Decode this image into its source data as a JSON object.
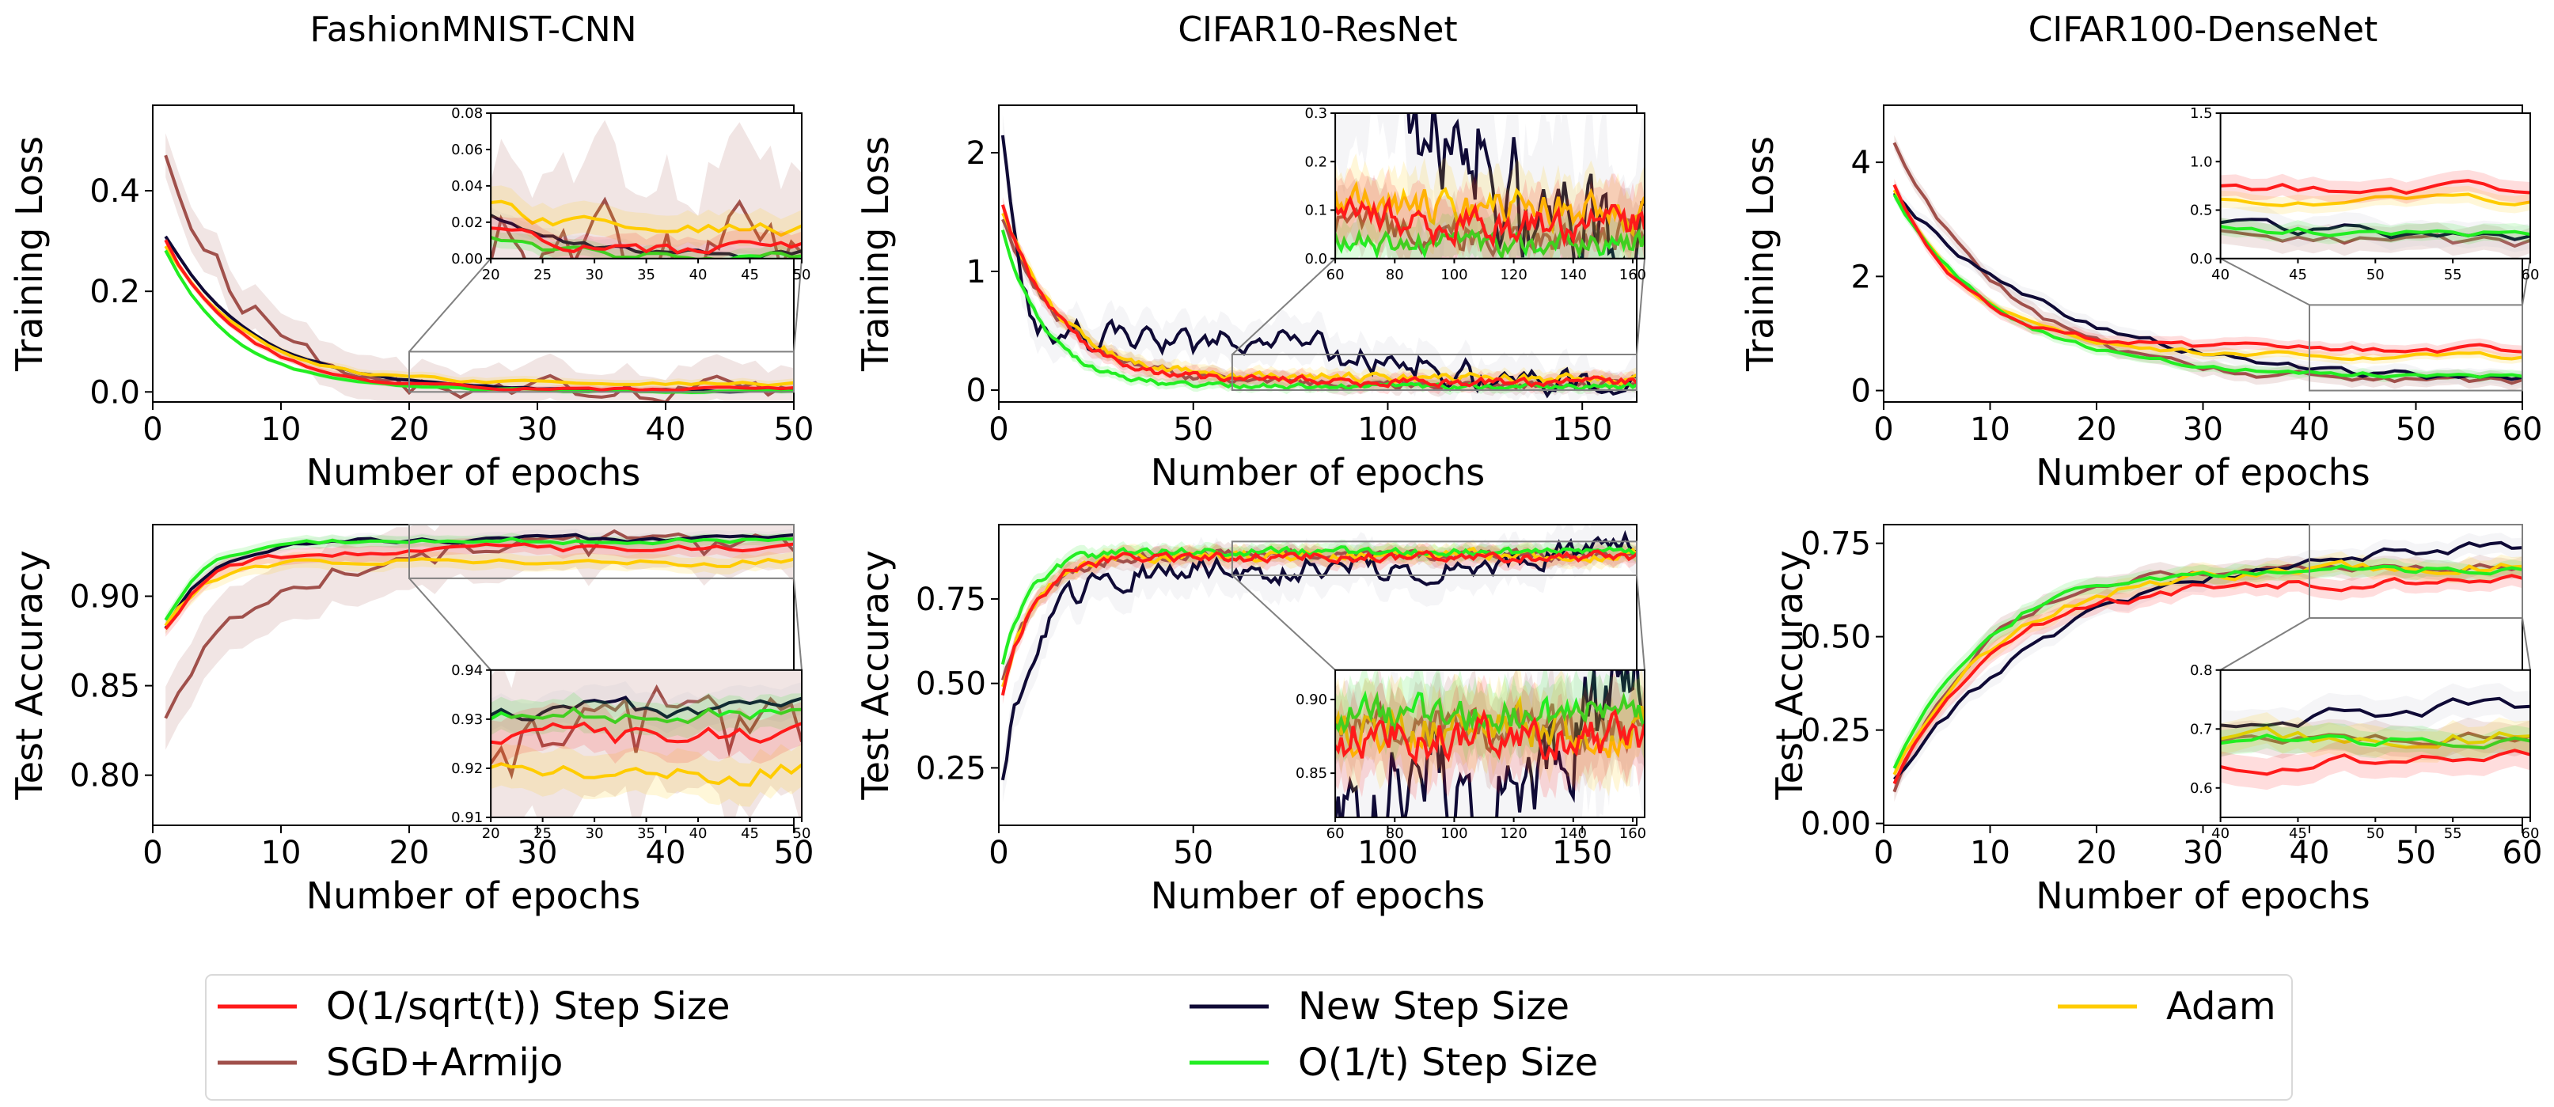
{
  "chart_data": {
    "type": "line",
    "series_styles": [
      {
        "key": "sqrt",
        "name": "O(1/sqrt(t)) Step Size",
        "color": "#ff1a1a"
      },
      {
        "key": "armijo",
        "name": "SGD+Armijo",
        "color": "#a0504b"
      },
      {
        "key": "new",
        "name": "New Step Size",
        "color": "#0f0a36"
      },
      {
        "key": "inv",
        "name": "O(1/t) Step Size",
        "color": "#22ee22"
      },
      {
        "key": "adam",
        "name": "Adam",
        "color": "#ffcc00"
      }
    ],
    "band_color": "#b9b9cc",
    "legend": {
      "placement": "bottom",
      "rows": [
        [
          "O(1/sqrt(t)) Step Size",
          "New Step Size",
          "Adam"
        ],
        [
          "SGD+Armijo",
          "O(1/t) Step Size"
        ]
      ]
    },
    "columns": [
      {
        "title": "FashionMNIST-CNN",
        "epochs": 50
      },
      {
        "title": "CIFAR10-ResNet",
        "epochs": 164
      },
      {
        "title": "CIFAR100-DenseNet",
        "epochs": 60
      }
    ],
    "panels": [
      {
        "id": "fm-loss",
        "col": 0,
        "row": 0,
        "model": "fashion_loss",
        "xlabel": "Number of epochs",
        "ylabel": "Training Loss",
        "xlim": [
          0,
          50
        ],
        "ylim": [
          -0.02,
          0.57
        ],
        "xticks": [
          "0",
          "10",
          "20",
          "30",
          "40",
          "50"
        ],
        "xtick_values": [
          0,
          10,
          20,
          30,
          40,
          50
        ],
        "yticks": [
          "0.0",
          "0.2",
          "0.4"
        ],
        "ytick_values": [
          0.0,
          0.2,
          0.4
        ],
        "inset": {
          "placement": "upper-right",
          "xlim": [
            20,
            50
          ],
          "ylim": [
            0,
            0.08
          ],
          "xticks": [
            "20",
            "25",
            "30",
            "35",
            "40",
            "45",
            "50"
          ],
          "xtick_values": [
            20,
            25,
            30,
            35,
            40,
            45,
            50
          ],
          "yticks": [
            "0.00",
            "0.02",
            "0.04",
            "0.06",
            "0.08"
          ],
          "ytick_values": [
            0,
            0.02,
            0.04,
            0.06,
            0.08
          ]
        }
      },
      {
        "id": "c10-loss",
        "col": 1,
        "row": 0,
        "model": "c10_loss",
        "xlabel": "Number of epochs",
        "ylabel": "Training Loss",
        "xlim": [
          0,
          164
        ],
        "ylim": [
          -0.1,
          2.4
        ],
        "xticks": [
          "0",
          "50",
          "100",
          "150"
        ],
        "xtick_values": [
          0,
          50,
          100,
          150
        ],
        "yticks": [
          "0",
          "1",
          "2"
        ],
        "ytick_values": [
          0,
          1,
          2
        ],
        "inset": {
          "placement": "upper-right",
          "xlim": [
            60,
            164
          ],
          "ylim": [
            0,
            0.3
          ],
          "xticks": [
            "60",
            "80",
            "100",
            "120",
            "140",
            "160"
          ],
          "xtick_values": [
            60,
            80,
            100,
            120,
            140,
            160
          ],
          "yticks": [
            "0.0",
            "0.1",
            "0.2",
            "0.3"
          ],
          "ytick_values": [
            0,
            0.1,
            0.2,
            0.3
          ]
        }
      },
      {
        "id": "c100-loss",
        "col": 2,
        "row": 0,
        "model": "c100_loss",
        "xlabel": "Number of epochs",
        "ylabel": "Training Loss",
        "xlim": [
          0,
          60
        ],
        "ylim": [
          -0.2,
          5.0
        ],
        "xticks": [
          "0",
          "10",
          "20",
          "30",
          "40",
          "50",
          "60"
        ],
        "xtick_values": [
          0,
          10,
          20,
          30,
          40,
          50,
          60
        ],
        "yticks": [
          "0",
          "2",
          "4"
        ],
        "ytick_values": [
          0,
          2,
          4
        ],
        "inset": {
          "placement": "upper-right",
          "xlim": [
            40,
            60
          ],
          "ylim": [
            0,
            1.5
          ],
          "xticks": [
            "40",
            "45",
            "50",
            "55",
            "60"
          ],
          "xtick_values": [
            40,
            45,
            50,
            55,
            60
          ],
          "yticks": [
            "0.0",
            "0.5",
            "1.0",
            "1.5"
          ],
          "ytick_values": [
            0,
            0.5,
            1.0,
            1.5
          ]
        }
      },
      {
        "id": "fm-acc",
        "col": 0,
        "row": 1,
        "model": "fashion_acc",
        "xlabel": "Number of epochs",
        "ylabel": "Test Accuracy",
        "xlim": [
          0,
          50
        ],
        "ylim": [
          0.772,
          0.94
        ],
        "xticks": [
          "0",
          "10",
          "20",
          "30",
          "40",
          "50"
        ],
        "xtick_values": [
          0,
          10,
          20,
          30,
          40,
          50
        ],
        "yticks": [
          "0.80",
          "0.85",
          "0.90"
        ],
        "ytick_values": [
          0.8,
          0.85,
          0.9
        ],
        "inset": {
          "placement": "lower-right",
          "xlim": [
            20,
            50
          ],
          "ylim": [
            0.91,
            0.94
          ],
          "xticks": [
            "20",
            "25",
            "30",
            "35",
            "40",
            "45",
            "50"
          ],
          "xtick_values": [
            20,
            25,
            30,
            35,
            40,
            45,
            50
          ],
          "yticks": [
            "0.91",
            "0.92",
            "0.93",
            "0.94"
          ],
          "ytick_values": [
            0.91,
            0.92,
            0.93,
            0.94
          ]
        }
      },
      {
        "id": "c10-acc",
        "col": 1,
        "row": 1,
        "model": "c10_acc",
        "xlabel": "Number of epochs",
        "ylabel": "Test Accuracy",
        "xlim": [
          0,
          164
        ],
        "ylim": [
          0.08,
          0.97
        ],
        "xticks": [
          "0",
          "50",
          "100",
          "150"
        ],
        "xtick_values": [
          0,
          50,
          100,
          150
        ],
        "yticks": [
          "0.25",
          "0.50",
          "0.75"
        ],
        "ytick_values": [
          0.25,
          0.5,
          0.75
        ],
        "inset": {
          "placement": "lower-right",
          "xlim": [
            60,
            164
          ],
          "ylim": [
            0.82,
            0.92
          ],
          "xticks": [
            "60",
            "80",
            "100",
            "120",
            "140",
            "160"
          ],
          "xtick_values": [
            60,
            80,
            100,
            120,
            140,
            160
          ],
          "yticks": [
            "0.85",
            "0.90"
          ],
          "ytick_values": [
            0.85,
            0.9
          ]
        }
      },
      {
        "id": "c100-acc",
        "col": 2,
        "row": 1,
        "model": "c100_acc",
        "xlabel": "Number of epochs",
        "ylabel": "Test Accuracy",
        "xlim": [
          0,
          60
        ],
        "ylim": [
          -0.005,
          0.8
        ],
        "xticks": [
          "0",
          "10",
          "20",
          "30",
          "40",
          "50",
          "60"
        ],
        "xtick_values": [
          0,
          10,
          20,
          30,
          40,
          50,
          60
        ],
        "yticks": [
          "0.00",
          "0.25",
          "0.50",
          "0.75"
        ],
        "ytick_values": [
          0,
          0.25,
          0.5,
          0.75
        ],
        "inset": {
          "placement": "lower-right",
          "xlim": [
            40,
            60
          ],
          "ylim": [
            0.55,
            0.8
          ],
          "xticks": [
            "40",
            "45",
            "50",
            "55",
            "60"
          ],
          "xtick_values": [
            40,
            45,
            50,
            55,
            60
          ],
          "yticks": [
            "0.6",
            "0.7",
            "0.8"
          ],
          "ytick_values": [
            0.6,
            0.7,
            0.8
          ]
        }
      }
    ],
    "curve_models": {
      "fashion_loss": {
        "sqrt": {
          "start": 0.3,
          "end": 0.004,
          "tau": 6.0,
          "noise": 0.003
        },
        "armijo": {
          "start": 0.46,
          "end": 0.001,
          "tau": 5.0,
          "noise": 0.02,
          "bumps": [
            [
              5,
              0.06
            ],
            [
              8,
              0.05
            ],
            [
              12,
              0.03
            ]
          ]
        },
        "new": {
          "start": 0.31,
          "end": 0.002,
          "tau": 7.0,
          "noise": 0.002
        },
        "inv": {
          "start": 0.28,
          "end": 0.001,
          "tau": 5.5,
          "noise": 0.002
        },
        "adam": {
          "start": 0.29,
          "end": 0.018,
          "tau": 6.0,
          "noise": 0.004
        }
      },
      "c10_loss": {
        "sqrt": {
          "start": 1.55,
          "end": 0.07,
          "tau": 14,
          "noise": 0.03
        },
        "armijo": {
          "start": 1.45,
          "end": 0.05,
          "tau": 16,
          "noise": 0.03
        },
        "new": {
          "start": 2.1,
          "end": 0.03,
          "tau": 6,
          "noise": 0.08,
          "plateau": [
            [
              10,
              140,
              0.45,
              0.25
            ]
          ]
        },
        "inv": {
          "start": 1.35,
          "end": 0.03,
          "tau": 11,
          "noise": 0.02
        },
        "adam": {
          "start": 1.5,
          "end": 0.1,
          "tau": 15,
          "noise": 0.03
        }
      },
      "c100_loss": {
        "sqrt": {
          "start": 3.6,
          "end": 0.72,
          "tau": 7,
          "noise": 0.05
        },
        "armijo": {
          "start": 4.3,
          "end": 0.12,
          "tau": 11,
          "noise": 0.06
        },
        "new": {
          "start": 3.5,
          "end": 0.1,
          "tau": 16,
          "noise": 0.06
        },
        "inv": {
          "start": 3.4,
          "end": 0.26,
          "tau": 10,
          "noise": 0.04
        },
        "adam": {
          "start": 3.5,
          "end": 0.6,
          "tau": 8,
          "noise": 0.04
        }
      },
      "fashion_acc": {
        "sqrt": {
          "start": 0.88,
          "end": 0.926,
          "tau": 3.5,
          "noise": 0.002
        },
        "armijo": {
          "start": 0.826,
          "end": 0.927,
          "tau": 5.5,
          "noise": 0.008
        },
        "new": {
          "start": 0.882,
          "end": 0.932,
          "tau": 3.8,
          "noise": 0.0015
        },
        "inv": {
          "start": 0.888,
          "end": 0.931,
          "tau": 3.2,
          "noise": 0.0015
        },
        "adam": {
          "start": 0.883,
          "end": 0.919,
          "tau": 3.0,
          "noise": 0.002
        }
      },
      "c10_acc": {
        "sqrt": {
          "start": 0.47,
          "end": 0.875,
          "tau": 8,
          "noise": 0.012
        },
        "armijo": {
          "start": 0.5,
          "end": 0.88,
          "tau": 9,
          "noise": 0.012
        },
        "new": {
          "start": 0.24,
          "end": 0.84,
          "tau": 9,
          "noise": 0.03,
          "ramp": [
            120,
            164,
            0.08
          ]
        },
        "inv": {
          "start": 0.55,
          "end": 0.89,
          "tau": 7,
          "noise": 0.01
        },
        "adam": {
          "start": 0.48,
          "end": 0.88,
          "tau": 8,
          "noise": 0.012
        }
      },
      "c100_acc": {
        "sqrt": {
          "start": 0.1,
          "end": 0.65,
          "tau": 9,
          "noise": 0.012
        },
        "armijo": {
          "start": 0.08,
          "end": 0.685,
          "tau": 8,
          "noise": 0.012
        },
        "new": {
          "start": 0.12,
          "end": 0.76,
          "tau": 16,
          "noise": 0.012
        },
        "inv": {
          "start": 0.15,
          "end": 0.68,
          "tau": 8,
          "noise": 0.01
        },
        "adam": {
          "start": 0.13,
          "end": 0.69,
          "tau": 10,
          "noise": 0.012
        }
      }
    }
  }
}
